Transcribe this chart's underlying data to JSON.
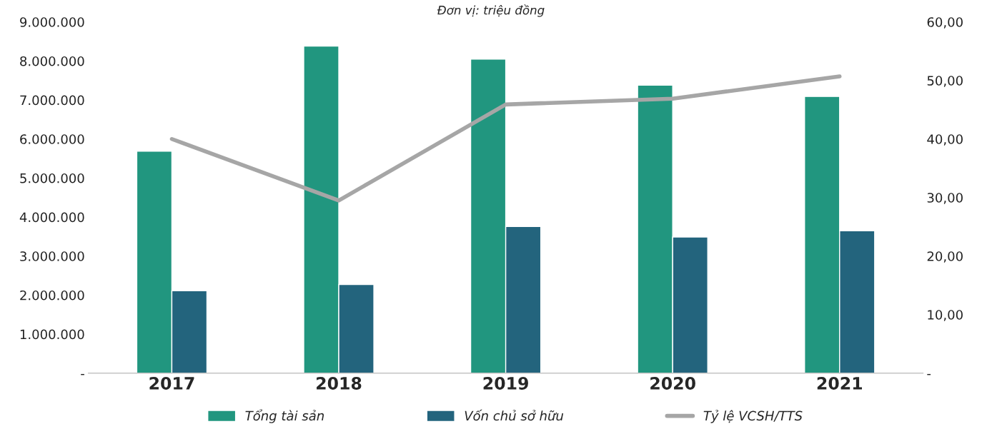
{
  "chart_data": {
    "type": "bar",
    "subtitle": "Đơn vị: triệu đồng",
    "categories": [
      "2017",
      "2018",
      "2019",
      "2020",
      "2021"
    ],
    "series": [
      {
        "name": "Tổng tài sản",
        "color": "#21967f",
        "values": [
          5690000,
          8380000,
          8050000,
          7380000,
          7090000
        ]
      },
      {
        "name": "Vốn chủ sở hữu",
        "color": "#23647d",
        "values": [
          2110000,
          2270000,
          3760000,
          3490000,
          3650000
        ]
      },
      {
        "name": "Tỷ lệ VCSH/TTS",
        "type": "line",
        "axis": "y2",
        "color": "#a6a6a6",
        "values": [
          40.0,
          29.5,
          45.9,
          46.9,
          50.7
        ]
      }
    ],
    "ylim": [
      0,
      9000000
    ],
    "yticks": [
      {
        "value": 0,
        "label": "-"
      },
      {
        "value": 1000000,
        "label": "1.000.000"
      },
      {
        "value": 2000000,
        "label": "2.000.000"
      },
      {
        "value": 3000000,
        "label": "3.000.000"
      },
      {
        "value": 4000000,
        "label": "4.000.000"
      },
      {
        "value": 5000000,
        "label": "5.000.000"
      },
      {
        "value": 6000000,
        "label": "6.000.000"
      },
      {
        "value": 7000000,
        "label": "7.000.000"
      },
      {
        "value": 8000000,
        "label": "8.000.000"
      },
      {
        "value": 9000000,
        "label": "9.000.000"
      }
    ],
    "y2lim": [
      0,
      60
    ],
    "y2ticks": [
      {
        "value": 0,
        "label": "-"
      },
      {
        "value": 10,
        "label": "10,00"
      },
      {
        "value": 20,
        "label": "20,00"
      },
      {
        "value": 30,
        "label": "30,00"
      },
      {
        "value": 40,
        "label": "40,00"
      },
      {
        "value": 50,
        "label": "50,00"
      },
      {
        "value": 60,
        "label": "60,00"
      }
    ],
    "grid": false,
    "legend": "bottom"
  }
}
